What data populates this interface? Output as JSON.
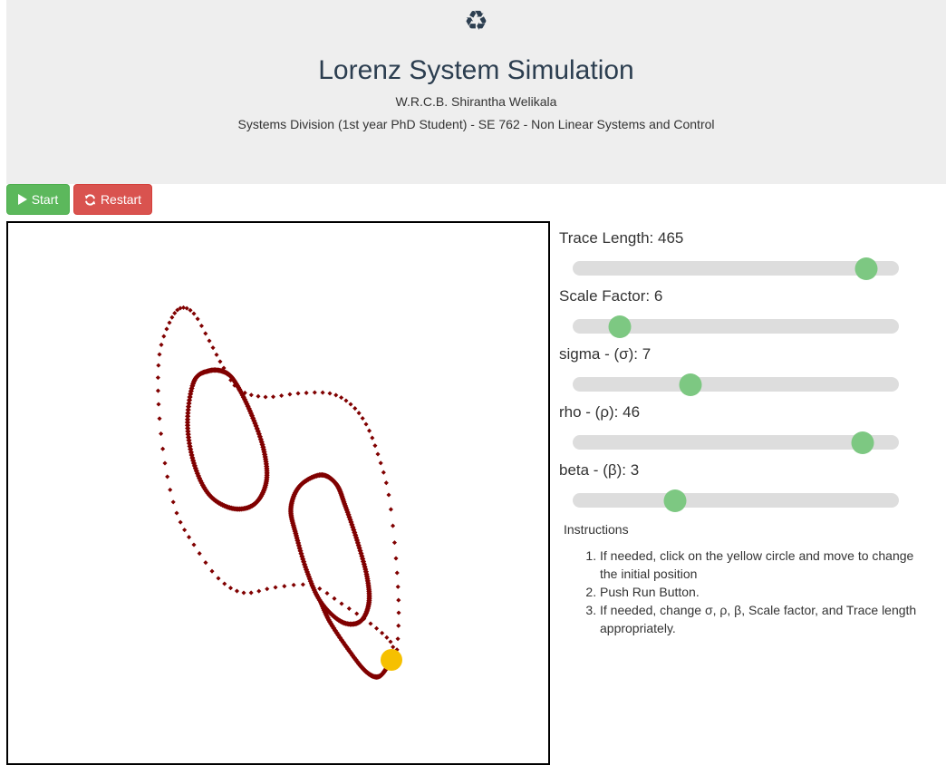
{
  "header": {
    "logo_icon": "recycle-icon",
    "logo_glyph": "♻",
    "title": "Lorenz System Simulation",
    "author": "W.R.C.B. Shirantha Welikala",
    "subtitle": "Systems Division (1st year PhD Student) - SE 762 - Non Linear Systems and Control"
  },
  "toolbar": {
    "start_label": "Start",
    "restart_label": "Restart",
    "start_icon": "play-icon",
    "restart_icon": "refresh-icon"
  },
  "colors": {
    "trace": "#800000",
    "marker": "#f6c000",
    "start_button": "#5cb85c",
    "restart_button": "#d9534f",
    "slider_thumb": "#7dc882",
    "slider_track": "#dddddd",
    "header_bg": "#eeeeee"
  },
  "sliders": [
    {
      "label": "Trace Length: 465",
      "fraction": 0.9
    },
    {
      "label": "Scale Factor: 6",
      "fraction": 0.145
    },
    {
      "label": "sigma - (σ): 7",
      "fraction": 0.36
    },
    {
      "label": "rho - (ρ): 46",
      "fraction": 0.89
    },
    {
      "label": "beta - (β): 3",
      "fraction": 0.315
    }
  ],
  "instructions": {
    "title": "Instructions",
    "items": [
      "If needed, click on the yellow circle and move to change the initial position",
      "Push Run Button.",
      "If needed, change σ, ρ, β, Scale factor, and Trace length appropriately."
    ]
  }
}
